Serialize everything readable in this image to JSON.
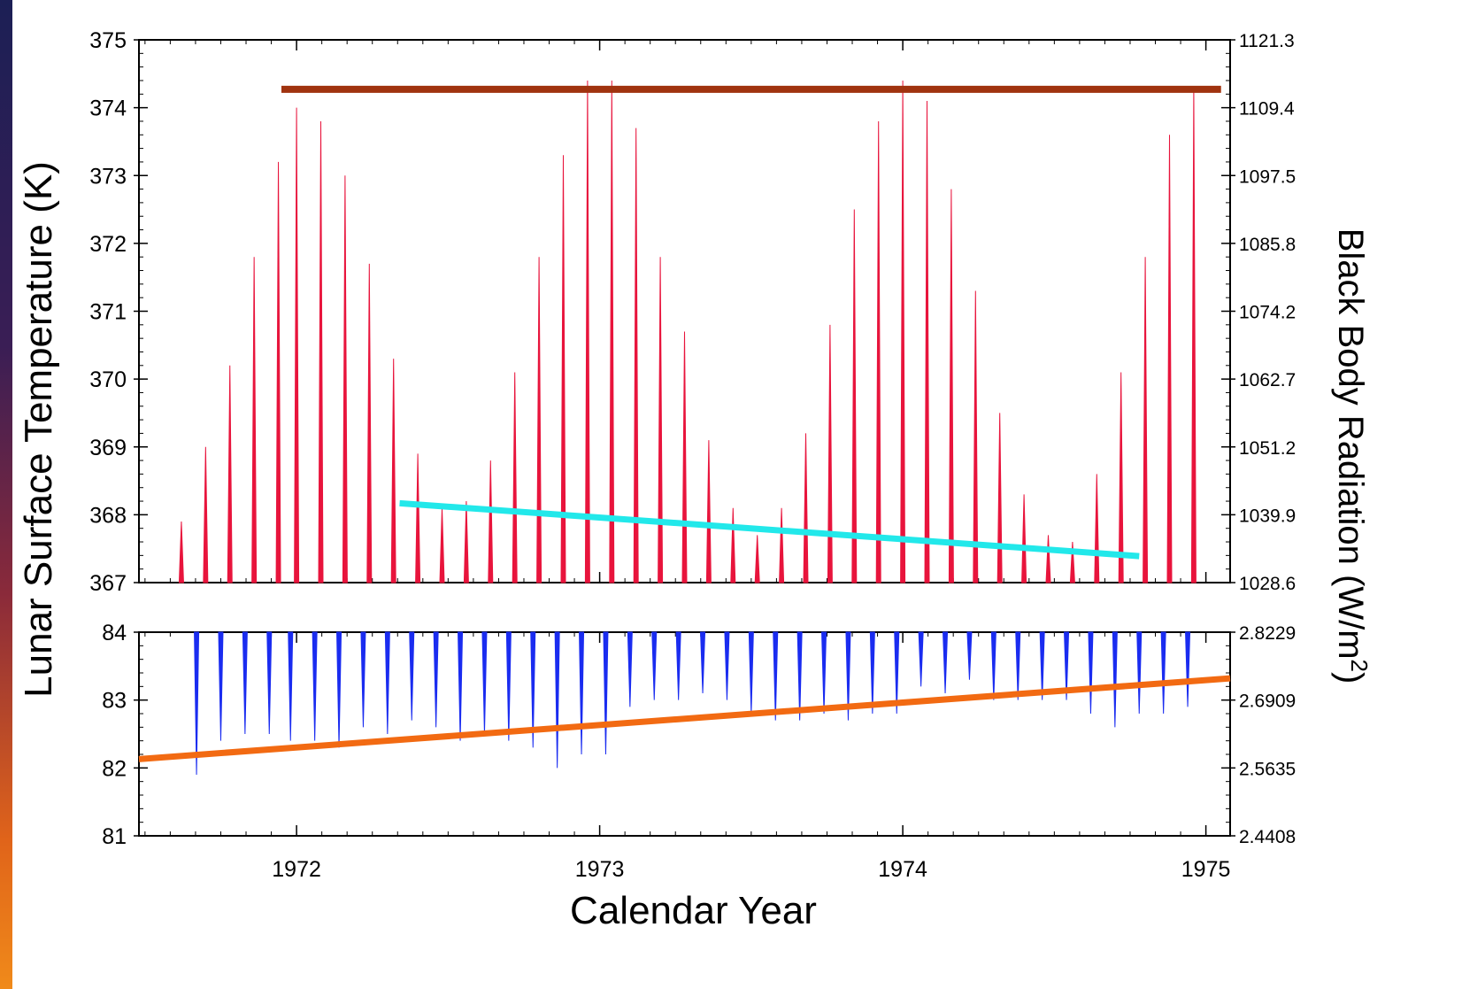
{
  "chart_data": {
    "type": "line",
    "xlabel": "Calendar Year",
    "ylabel_left": "Lunar Surface Temperature (K)",
    "ylabel_right_prefix": "Black Body Radiation (W/m",
    "ylabel_right_sup": "2",
    "ylabel_right_suffix": ")",
    "x_ticks": [
      "1972",
      "1973",
      "1974",
      "1975"
    ],
    "xlim": [
      1971.48,
      1975.08
    ],
    "upper_panel": {
      "ylim": [
        367,
        375
      ],
      "left_ticks": [
        "367",
        "368",
        "369",
        "370",
        "371",
        "372",
        "373",
        "374",
        "375"
      ],
      "right_ticks": [
        "1028.6",
        "1039.9",
        "1051.2",
        "1062.7",
        "1074.2",
        "1085.8",
        "1097.5",
        "1109.4",
        "1121.3"
      ],
      "series": {
        "color": "#e8143c",
        "x": [
          1971.62,
          1971.7,
          1971.78,
          1971.86,
          1971.94,
          1972.0,
          1972.08,
          1972.16,
          1972.24,
          1972.32,
          1972.4,
          1972.48,
          1972.56,
          1972.64,
          1972.72,
          1972.8,
          1972.88,
          1972.96,
          1973.04,
          1973.12,
          1973.2,
          1973.28,
          1973.36,
          1973.44,
          1973.52,
          1973.6,
          1973.68,
          1973.76,
          1973.84,
          1973.92,
          1974.0,
          1974.08,
          1974.16,
          1974.24,
          1974.32,
          1974.4,
          1974.48,
          1974.56,
          1974.64,
          1974.72,
          1974.8,
          1974.88,
          1974.96
        ],
        "y": [
          367.9,
          369.0,
          370.2,
          371.8,
          373.2,
          374.0,
          373.8,
          373.0,
          371.7,
          370.3,
          368.9,
          368.1,
          368.2,
          368.8,
          370.1,
          371.8,
          373.3,
          374.4,
          374.4,
          373.7,
          371.8,
          370.7,
          369.1,
          368.1,
          367.7,
          368.1,
          369.2,
          370.8,
          372.5,
          373.8,
          374.4,
          374.1,
          372.8,
          371.3,
          369.5,
          368.3,
          367.7,
          367.6,
          368.6,
          370.1,
          371.8,
          373.6,
          374.3
        ]
      },
      "max_line": {
        "color": "#a0330f",
        "x": [
          1971.95,
          1975.05
        ],
        "y": [
          374.27,
          374.27
        ]
      },
      "trend_line": {
        "color": "#22e8ea",
        "x": [
          1972.34,
          1974.78
        ],
        "y": [
          368.17,
          367.39
        ]
      }
    },
    "lower_panel": {
      "ylim": [
        81,
        84
      ],
      "left_ticks": [
        "81",
        "82",
        "83",
        "84"
      ],
      "right_ticks": [
        "2.4408",
        "2.5635",
        "2.6909",
        "2.8229"
      ],
      "series": {
        "color": "#1a2cf0",
        "x": [
          1971.67,
          1971.75,
          1971.83,
          1971.91,
          1971.98,
          1972.06,
          1972.14,
          1972.22,
          1972.3,
          1972.38,
          1972.46,
          1972.54,
          1972.62,
          1972.7,
          1972.78,
          1972.86,
          1972.94,
          1973.02,
          1973.1,
          1973.18,
          1973.26,
          1973.34,
          1973.42,
          1973.5,
          1973.58,
          1973.66,
          1973.74,
          1973.82,
          1973.9,
          1973.98,
          1974.06,
          1974.14,
          1974.22,
          1974.3,
          1974.38,
          1974.46,
          1974.54,
          1974.62,
          1974.7,
          1974.78,
          1974.86,
          1974.94
        ],
        "y": [
          81.9,
          82.4,
          82.5,
          82.5,
          82.4,
          82.4,
          82.3,
          82.6,
          82.5,
          82.7,
          82.6,
          82.4,
          82.5,
          82.4,
          82.3,
          82.0,
          82.2,
          82.2,
          82.9,
          83.0,
          83.0,
          83.1,
          83.0,
          82.8,
          82.7,
          82.7,
          82.8,
          82.7,
          82.8,
          82.8,
          83.2,
          83.1,
          83.3,
          83.0,
          83.0,
          83.0,
          83.0,
          82.8,
          82.6,
          82.8,
          82.8,
          82.9
        ]
      },
      "trend_line": {
        "color": "#f26a12",
        "x": [
          1971.48,
          1975.08
        ],
        "y": [
          82.13,
          83.32
        ]
      }
    }
  }
}
